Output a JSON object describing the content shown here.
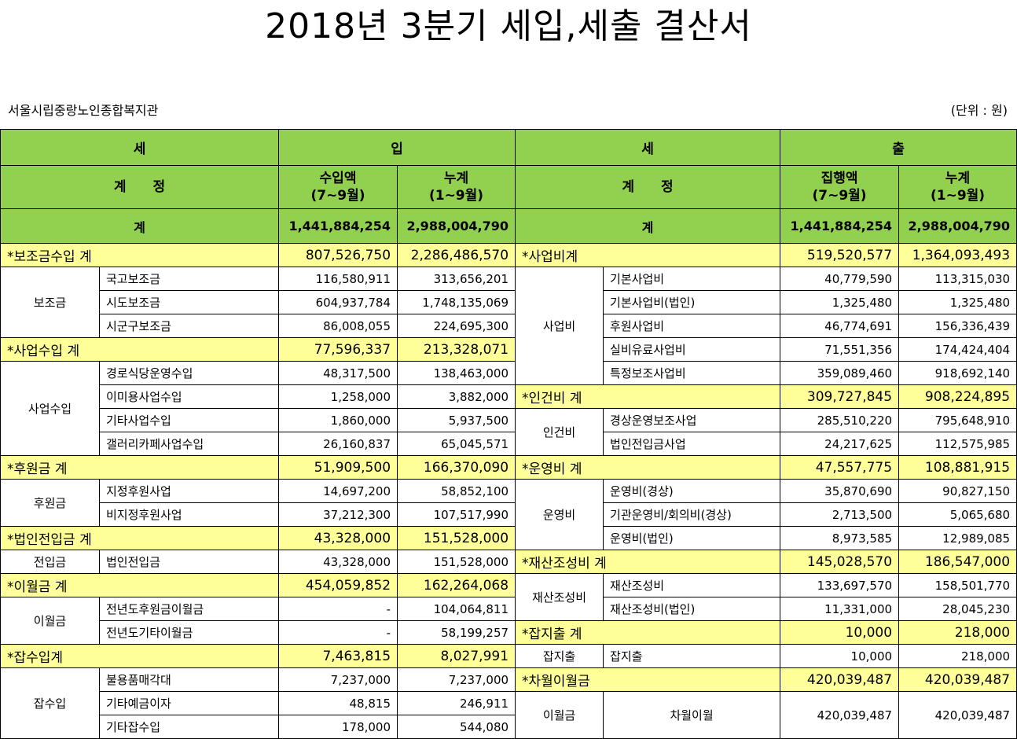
{
  "title": "2018년 3분기 세입,세출 결산서",
  "organization": "서울시립중랑노인종합복지관",
  "unit": "(단위 : 원)",
  "header": {
    "income_left": "세",
    "income_right": "입",
    "expense_left": "세",
    "expense_right": "출",
    "account_label": "계　　정",
    "income_amount_l1": "수입액",
    "income_amount_l2": "(7~9월)",
    "cumulative_l1": "누계",
    "cumulative_l2": "(1~9월)",
    "expense_amount_l1": "집행액",
    "expense_amount_l2": "(7~9월)",
    "total_label": "계",
    "income_total": "1,441,884,254",
    "income_cumulative_total": "2,988,004,790",
    "expense_total": "1,441,884,254",
    "expense_cumulative_total": "2,988,004,790"
  },
  "rows": [
    {
      "il": "*보조금수입 계",
      "ia": "807,526,750",
      "ic": "2,286,486,570",
      "el": "*사업비계",
      "ea": "519,520,577",
      "ec": "1,364,093,493"
    },
    {
      "ig": "보조금",
      "is": "국고보조금",
      "ia": "116,580,911",
      "ic": "313,656,201",
      "eg": "사업비",
      "es": "기본사업비",
      "ea": "40,779,590",
      "ec": "113,315,030"
    },
    {
      "is": "시도보조금",
      "ia": "604,937,784",
      "ic": "1,748,135,069",
      "es": "기본사업비(법인)",
      "ea": "1,325,480",
      "ec": "1,325,480"
    },
    {
      "is": "시군구보조금",
      "ia": "86,008,055",
      "ic": "224,695,300",
      "es": "후원사업비",
      "ea": "46,774,691",
      "ec": "156,336,439"
    },
    {
      "il": "*사업수입 계",
      "ia": "77,596,337",
      "ic": "213,328,071",
      "es": "실비유료사업비",
      "ea": "71,551,356",
      "ec": "174,424,404"
    },
    {
      "ig": "사업수입",
      "is": "경로식당운영수입",
      "ia": "48,317,500",
      "ic": "138,463,000",
      "es": "특정보조사업비",
      "ea": "359,089,460",
      "ec": "918,692,140"
    },
    {
      "is": "이미용사업수입",
      "ia": "1,258,000",
      "ic": "3,882,000",
      "el": "*인건비 계",
      "ea": "309,727,845",
      "ec": "908,224,895"
    },
    {
      "is": "기타사업수입",
      "ia": "1,860,000",
      "ic": "5,937,500",
      "eg": "인건비",
      "es": "경상운영보조사업",
      "ea": "285,510,220",
      "ec": "795,648,910"
    },
    {
      "is": "갤러리카페사업수입",
      "ia": "26,160,837",
      "ic": "65,045,571",
      "es": "법인전입금사업",
      "ea": "24,217,625",
      "ec": "112,575,985"
    },
    {
      "il": "*후원금 계",
      "ia": "51,909,500",
      "ic": "166,370,090",
      "el": "*운영비 계",
      "ea": "47,557,775",
      "ec": "108,881,915"
    },
    {
      "ig": "후원금",
      "is": "지정후원사업",
      "ia": "14,697,200",
      "ic": "58,852,100",
      "eg": "운영비",
      "es": "운영비(경상)",
      "ea": "35,870,690",
      "ec": "90,827,150"
    },
    {
      "is": "비지정후원사업",
      "ia": "37,212,300",
      "ic": "107,517,990",
      "es": "기관운영비/회의비(경상)",
      "ea": "2,713,500",
      "ec": "5,065,680"
    },
    {
      "il": "*법인전입금 계",
      "ia": "43,328,000",
      "ic": "151,528,000",
      "es": "운영비(법인)",
      "ea": "8,973,585",
      "ec": "12,989,085"
    },
    {
      "ig": "전입금",
      "is": "법인전입금",
      "ia": "43,328,000",
      "ic": "151,528,000",
      "el": "*재산조성비 계",
      "ea": "145,028,570",
      "ec": "186,547,000"
    },
    {
      "il": "*이월금 계",
      "ia": "454,059,852",
      "ic": "162,264,068",
      "eg": "재산조성비",
      "es": "재산조성비",
      "ea": "133,697,570",
      "ec": "158,501,770"
    },
    {
      "ig": "이월금",
      "is": "전년도후원금이월금",
      "ia": "-",
      "ic": "104,064,811",
      "es": "재산조성비(법인)",
      "ea": "11,331,000",
      "ec": "28,045,230"
    },
    {
      "is": "전년도기타이월금",
      "ia": "-",
      "ic": "58,199,257",
      "el": "*잡지출 계",
      "ea": "10,000",
      "ec": "218,000"
    },
    {
      "il": "*잡수입계",
      "ia": "7,463,815",
      "ic": "8,027,991",
      "eg": "잡지출",
      "es": "잡지출",
      "ea": "10,000",
      "ec": "218,000"
    },
    {
      "ig": "잡수입",
      "is": "불용품매각대",
      "ia": "7,237,000",
      "ic": "7,237,000",
      "el": "*차월이월금",
      "ea": "420,039,487",
      "ec": "420,039,487"
    },
    {
      "is": "기타예금이자",
      "ia": "48,815",
      "ic": "246,911",
      "eg": "이월금",
      "es": "차월이월",
      "ea": "420,039,487",
      "ec": "420,039,487"
    },
    {
      "is": "기타잡수입",
      "ia": "178,000",
      "ic": "544,080"
    }
  ]
}
